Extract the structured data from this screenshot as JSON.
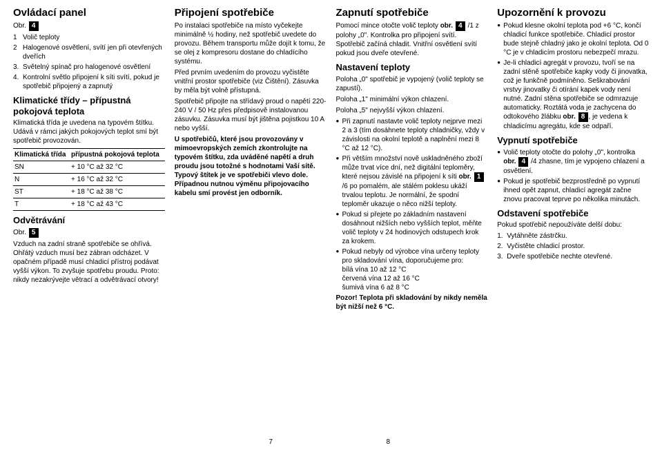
{
  "col1": {
    "h1": "Ovládací panel",
    "obr": "Obr.",
    "obr_num": "4",
    "list": [
      {
        "n": "1",
        "t": "Volič teploty"
      },
      {
        "n": "2",
        "t": "Halogenové osvětlení, svítí jen při otevřených dveřích"
      },
      {
        "n": "3.",
        "t": "Světelný spínač pro halogenové osvětlení"
      },
      {
        "n": "4.",
        "t": "Kontrolní světlo připojení k síti svítí, pokud je spotřebič připojený a zapnutý"
      }
    ],
    "h2": "Klimatické třídy – přípustná pokojová teplota",
    "p1": "Klimatická třída je uvedena na typovém štítku. Udává v rámci jakých pokojových teplot smí být spotřebič provozován.",
    "table_header": [
      "Klimatická třída",
      "přípustná pokojová teplota"
    ],
    "table_rows": [
      [
        "SN",
        "+ 10 °C až 32 °C"
      ],
      [
        "N",
        "+ 16 °C až 32 °C"
      ],
      [
        "ST",
        "+ 18 °C až 38 °C"
      ],
      [
        "T",
        "+ 18 °C až 43 °C"
      ]
    ],
    "h3": "Odvětrávání",
    "obr2": "Obr.",
    "obr2_num": "5",
    "p2": "Vzduch na zadní straně spotřebiče se ohřívá. Ohřátý vzduch musí bez zábran odcházet. V opačném případě musí chladicí přístroj podávat vyšší výkon. To zvyšuje spotřebu proudu. Proto: nikdy nezakrývejte větrací a odvětrávací otvory!"
  },
  "col2": {
    "h1": "Připojení spotřebiče",
    "p1": "Po instalaci spotřebiče na místo vyčekejte minimálně ½ hodiny, než spotřebič uvedete do provozu. Během transportu může dojít k tomu, že se olej z kompresoru dostane do chladícího systému.",
    "p2": "Před prvním uvedením do provozu vyčistěte vnitřní prostor spotřebiče (viz Čištění). Zásuvka by měla být volně přístupná.",
    "p3": "Spotřebič připojte na střídavý proud o napětí 220-240 V / 50 Hz přes předpisově instalovanou zásuvku. Zásuvka musí být jištěna pojistkou 10 A nebo vyšší.",
    "p4": "U spotřebičů, které jsou provozovány v mimoevropských zemích zkontrolujte na typovém štítku, zda uváděné napětí a druh proudu jsou totožné s hodnotami Vaší sítě. Typový štítek je ve spotřebiči vlevo dole. Případnou nutnou výměnu připojovacího kabelu smí provést jen odborník."
  },
  "col3": {
    "h1": "Zapnutí spotřebiče",
    "p1a": "Pomocí mince otočte volič teploty ",
    "p1b": "obr. ",
    "p1_box": "4",
    "p1c": " /1 z polohy „0\". Kontrolka pro připojení svítí. Spotřebič začíná chladit. Vnitřní osvětlení svítí pokud jsou dveře otevřené.",
    "h2": "Nastavení teploty",
    "p2": "Poloha „0\" spotřebič je vypojený (volič teploty se zapustí).",
    "p3": "Poloha „1\" minimální výkon chlazení.",
    "p4": "Poloha „5\" nejvyšší výkon chlazení.",
    "li1": "Při zapnutí nastavte volič teploty nejprve mezi 2 a 3 (tím dosáhnete teploty chladničky, vždy v závislosti na okolní teplotě a naplnění mezi 8 °C až 12 °C).",
    "li2a": "Při větším množství nově uskladněného zboží může trvat více dní, než digitální teploměry, které nejsou závislé na připojení k síti ",
    "li2b": "obr. ",
    "li2_box": "1",
    "li2c": " /6 po pomalém, ale stálém poklesu ukáží trvalou teplotu. Je normální, že spodní teploměr ukazuje o něco nižší teploty.",
    "li3": "Pokud si přejete po základním nastavení dosáhnout nižších nebo vyšších teplot, měňte volič teploty v 24 hodinových odstupech krok za krokem.",
    "li4a": "Pokud nebyly od výrobce vína určeny teploty pro skladování vína, doporučujeme pro:",
    "li4b": "bílá vína 10 až 12 °C",
    "li4c": "červená vína 12 až 16 °C",
    "li4d": "šumivá vína 6 až 8 °C",
    "warn": "Pozor! Teplota při skladování by nikdy neměla být nižší než 6 °C."
  },
  "col4": {
    "h1": "Upozornění k provozu",
    "li1": "Pokud klesne okolní teplota pod +6 °C, končí chladicí funkce spotřebiče. Chladicí prostor bude stejně chladný jako je okolní teplota. Od 0 °C je v chladicím prostoru nebezpečí mrazu.",
    "li2a": "Je-li chladicí agregát v provozu, tvoří se na zadní stěně spotřebiče kapky vody či jinovatka, což je funkčně podmíněno. Seškrabování vrstvy jinovatky či otírání kapek vody není nutné. Zadní stěna spotřebiče se odmrazuje automaticky. Roztátá voda je zachycena do odtokového žlábku ",
    "li2b": "obr. ",
    "li2_box": "8",
    "li2c": ", je vedena k chladicímu agregátu, kde se odpaří.",
    "h2": "Vypnutí spotřebiče",
    "li3a": "Volič teploty otočte do polohy „0\", kontrolka ",
    "li3b": "obr. ",
    "li3_box": "4",
    "li3c": " /4 zhasne, tím je vypojeno chlazení a osvětlení.",
    "li4": "Pokud je spotřebič bezprostředně po vypnutí ihned opět zapnut, chladicí agregát začne znovu pracovat teprve po několika minutách.",
    "h3": "Odstavení spotřebiče",
    "p1": "Pokud spotřebič nepoužíváte delší dobu:",
    "ol1": "Vytáhněte zástrčku.",
    "ol2": "Vyčistěte chladicí prostor.",
    "ol3": "Dveře spotřebiče nechte otevřené."
  },
  "page_left": "7",
  "page_right": "8"
}
